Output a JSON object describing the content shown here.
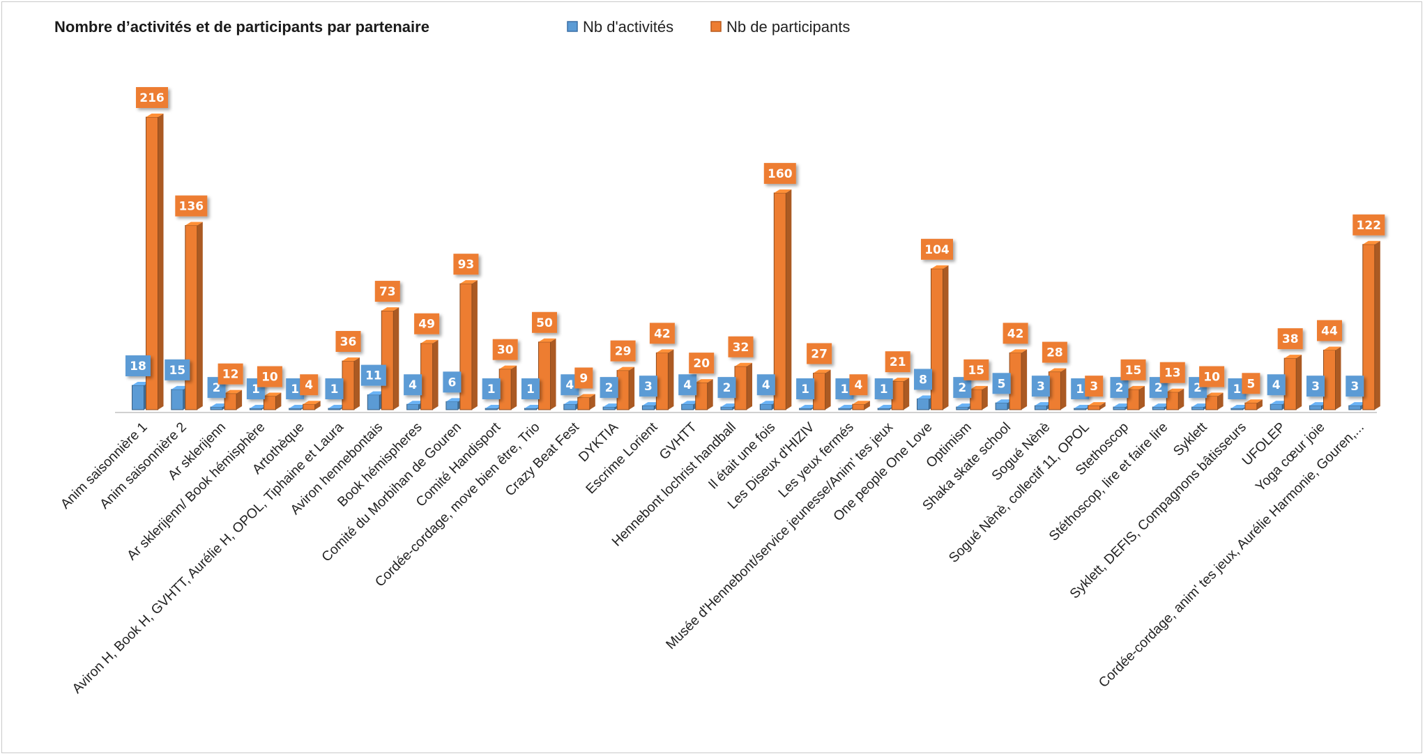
{
  "chart_data": {
    "type": "bar",
    "title": "Nombre d’activités et de participants par partenaire",
    "xlabel": "",
    "ylabel": "",
    "ylim": [
      0,
      230
    ],
    "grid": false,
    "legend_position": "top",
    "categories": [
      "Anim saisonnière 1",
      "Anim saisonnière 2",
      "Ar sklerijenn",
      "Ar sklerijenn/ Book hémisphère",
      "Artothèque",
      "Aviron H, Book H, GVHTT, Aurélie H, OPOL, Tiphaine et Laura",
      "Aviron hennebontais",
      "Book hémispheres",
      "Comité du Morbihan de Gouren",
      "Comité Handisport",
      "Cordée-cordage, move bien être, Trio",
      "Crazy Beat Fest",
      "DYKTIA",
      "Escrime Lorient",
      "GVHTT",
      "Hennebont lochrist handball",
      "Il était une fois",
      "Les Diseux d'HIZIV",
      "Les yeux fermés",
      "Musée d'Hennebont/service jeunesse/Anim' tes jeux",
      "One people One Love",
      "Optimism",
      "Shaka skate school",
      "Sogué Nènè",
      "Sogué Nènè, collectif 11, OPOL",
      "Stethoscop",
      "Stéthoscop, lire et faire lire",
      "Syklett",
      "Syklett, DEFIS, Compagnons bâtisseurs",
      "UFOLEP",
      "Yoga cœur joie",
      "Cordée-cordage,  anim' tes jeux, Aurélie Harmonie, Gouren,..."
    ],
    "series": [
      {
        "name": "Nb d'activités",
        "color": "#5b9bd5",
        "values": [
          18,
          15,
          2,
          1,
          1,
          1,
          11,
          4,
          6,
          1,
          1,
          4,
          2,
          3,
          4,
          2,
          4,
          1,
          1,
          1,
          8,
          2,
          5,
          3,
          1,
          2,
          2,
          2,
          1,
          4,
          3,
          3
        ]
      },
      {
        "name": "Nb de participants",
        "color": "#ed7d31",
        "values": [
          216,
          136,
          12,
          10,
          4,
          36,
          73,
          49,
          93,
          30,
          50,
          9,
          29,
          42,
          20,
          32,
          160,
          27,
          4,
          21,
          104,
          15,
          42,
          28,
          3,
          15,
          13,
          10,
          5,
          38,
          44,
          122
        ]
      }
    ]
  }
}
